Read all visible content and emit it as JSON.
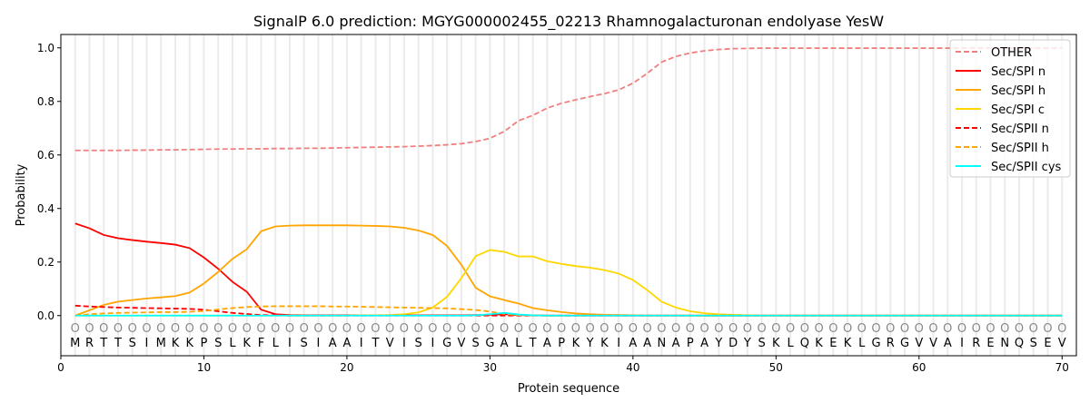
{
  "chart_data": {
    "type": "line",
    "title": "SignalP 6.0 prediction: MGYG000002455_02213 Rhamnogalacturonan endolyase YesW",
    "xlabel": "Protein sequence",
    "ylabel": "Probability",
    "xlim": [
      0,
      71
    ],
    "ylim": [
      -0.15,
      1.05
    ],
    "xticks": [
      0,
      10,
      20,
      30,
      40,
      50,
      60,
      70
    ],
    "yticks": [
      0.0,
      0.2,
      0.4,
      0.6,
      0.8,
      1.0
    ],
    "ytick_labels": [
      "0.0",
      "0.2",
      "0.4",
      "0.6",
      "0.8",
      "1.0"
    ],
    "legend_position": "top-right",
    "sequence": "MRTTSIMKKPSLKFLISIAAITVISIGVSGALTAPKYKIAANAPAYDYSKLQKEKLGRGVVAIRENQSEV",
    "region_marker": "O",
    "series": [
      {
        "name": "OTHER",
        "color": "#f08080",
        "dash": true,
        "values": [
          0.617,
          0.617,
          0.617,
          0.617,
          0.618,
          0.618,
          0.619,
          0.619,
          0.62,
          0.621,
          0.622,
          0.622,
          0.623,
          0.623,
          0.624,
          0.624,
          0.625,
          0.625,
          0.626,
          0.627,
          0.628,
          0.629,
          0.63,
          0.631,
          0.633,
          0.635,
          0.638,
          0.642,
          0.65,
          0.662,
          0.688,
          0.728,
          0.748,
          0.775,
          0.793,
          0.806,
          0.818,
          0.829,
          0.843,
          0.868,
          0.905,
          0.947,
          0.968,
          0.981,
          0.989,
          0.994,
          0.997,
          0.998,
          0.999,
          0.999,
          0.999,
          0.999,
          0.999,
          0.999,
          0.999,
          0.999,
          0.999,
          0.999,
          0.999,
          0.999,
          0.999,
          0.999,
          0.999,
          0.999,
          0.999,
          0.999,
          0.999,
          0.999,
          0.999,
          1.0
        ]
      },
      {
        "name": "Sec/SPI n",
        "color": "#ff0000",
        "dash": false,
        "values": [
          0.344,
          0.326,
          0.301,
          0.289,
          0.282,
          0.276,
          0.271,
          0.265,
          0.252,
          0.217,
          0.175,
          0.126,
          0.089,
          0.022,
          0.005,
          0.002,
          0.001,
          0.001,
          0.001,
          0.001,
          0.001,
          0.001,
          0.001,
          0.001,
          0.001,
          0.001,
          0.001,
          0.001,
          0.002,
          0.003,
          0.005,
          0.002,
          0.001,
          0,
          0,
          0,
          0,
          0,
          0,
          0,
          0,
          0,
          0,
          0,
          0,
          0,
          0,
          0,
          0,
          0,
          0,
          0,
          0,
          0,
          0,
          0,
          0,
          0,
          0,
          0,
          0,
          0,
          0,
          0,
          0,
          0,
          0,
          0,
          0,
          0
        ]
      },
      {
        "name": "Sec/SPI h",
        "color": "#ffa500",
        "dash": false,
        "values": [
          0.0,
          0.02,
          0.04,
          0.052,
          0.058,
          0.064,
          0.068,
          0.073,
          0.086,
          0.12,
          0.163,
          0.212,
          0.248,
          0.315,
          0.333,
          0.336,
          0.337,
          0.337,
          0.337,
          0.337,
          0.336,
          0.335,
          0.333,
          0.328,
          0.318,
          0.301,
          0.26,
          0.19,
          0.104,
          0.072,
          0.058,
          0.045,
          0.028,
          0.02,
          0.013,
          0.008,
          0.005,
          0.003,
          0.002,
          0.001,
          0,
          0,
          0,
          0,
          0,
          0,
          0,
          0,
          0,
          0,
          0,
          0,
          0,
          0,
          0,
          0,
          0,
          0,
          0,
          0,
          0,
          0,
          0,
          0,
          0,
          0,
          0,
          0,
          0,
          0
        ]
      },
      {
        "name": "Sec/SPI c",
        "color": "#ffd700",
        "dash": false,
        "values": [
          0,
          0,
          0,
          0,
          0,
          0,
          0,
          0,
          0,
          0,
          0,
          0,
          0,
          0,
          0,
          0,
          0,
          0,
          0,
          0,
          0.001,
          0.001,
          0.002,
          0.005,
          0.012,
          0.03,
          0.07,
          0.14,
          0.222,
          0.245,
          0.238,
          0.221,
          0.221,
          0.203,
          0.193,
          0.185,
          0.179,
          0.17,
          0.157,
          0.133,
          0.095,
          0.052,
          0.03,
          0.016,
          0.009,
          0.005,
          0.003,
          0.001,
          0,
          0,
          0,
          0,
          0,
          0,
          0,
          0,
          0,
          0,
          0,
          0,
          0,
          0,
          0,
          0,
          0,
          0,
          0,
          0,
          0,
          0
        ]
      },
      {
        "name": "Sec/SPII n",
        "color": "#ff0000",
        "dash": true,
        "values": [
          0.037,
          0.034,
          0.032,
          0.03,
          0.029,
          0.028,
          0.027,
          0.026,
          0.025,
          0.022,
          0.016,
          0.01,
          0.006,
          0.002,
          0.001,
          0,
          0,
          0,
          0,
          0,
          0,
          0,
          0,
          0,
          0,
          0,
          0,
          0,
          0,
          0,
          0,
          0,
          0,
          0,
          0,
          0,
          0,
          0,
          0,
          0,
          0,
          0,
          0,
          0,
          0,
          0,
          0,
          0,
          0,
          0,
          0,
          0,
          0,
          0,
          0,
          0,
          0,
          0,
          0,
          0,
          0,
          0,
          0,
          0,
          0,
          0,
          0,
          0,
          0,
          0
        ]
      },
      {
        "name": "Sec/SPII h",
        "color": "#ffa500",
        "dash": true,
        "values": [
          0.0,
          0.005,
          0.008,
          0.01,
          0.011,
          0.012,
          0.013,
          0.013,
          0.014,
          0.017,
          0.023,
          0.028,
          0.032,
          0.034,
          0.035,
          0.035,
          0.035,
          0.035,
          0.034,
          0.034,
          0.033,
          0.032,
          0.031,
          0.03,
          0.029,
          0.028,
          0.027,
          0.024,
          0.021,
          0.015,
          0.006,
          0.002,
          0.001,
          0,
          0,
          0,
          0,
          0,
          0,
          0,
          0,
          0,
          0,
          0,
          0,
          0,
          0,
          0,
          0,
          0,
          0,
          0,
          0,
          0,
          0,
          0,
          0,
          0,
          0,
          0,
          0,
          0,
          0,
          0,
          0,
          0,
          0,
          0,
          0,
          0
        ]
      },
      {
        "name": "Sec/SPII cys",
        "color": "#00ffff",
        "dash": false,
        "values": [
          0,
          0,
          0,
          0,
          0,
          0,
          0,
          0,
          0,
          0,
          0,
          0,
          0,
          0,
          0,
          0,
          0,
          0,
          0,
          0,
          0,
          0,
          0,
          0,
          0,
          0,
          0,
          0,
          0.001,
          0.005,
          0.01,
          0.004,
          0.001,
          0,
          0,
          0,
          0,
          0,
          0,
          0,
          0,
          0,
          0,
          0,
          0,
          0,
          0,
          0,
          0,
          0,
          0,
          0,
          0,
          0,
          0,
          0,
          0,
          0,
          0,
          0,
          0,
          0,
          0,
          0,
          0,
          0,
          0,
          0,
          0,
          0
        ]
      }
    ]
  }
}
